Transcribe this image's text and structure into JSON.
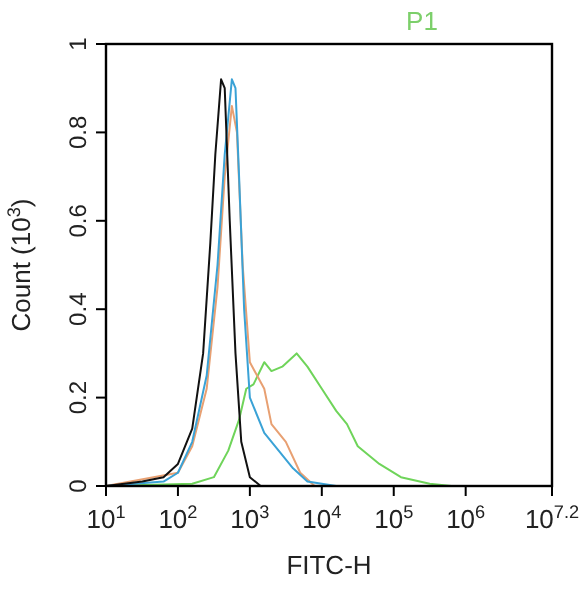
{
  "chart_data": {
    "type": "line",
    "title": "P1",
    "xlabel": "FITC-H",
    "ylabel": "Count (10$^{3}$)",
    "log": "x",
    "xlim": [
      10,
      15848932
    ],
    "ylim": [
      0,
      1
    ],
    "xticks": [
      {
        "value": 10,
        "label": "10$^{1}$"
      },
      {
        "value": 100,
        "label": "10$^{2}$"
      },
      {
        "value": 1000,
        "label": "10$^{3}$"
      },
      {
        "value": 10000,
        "label": "10$^{4}$"
      },
      {
        "value": 100000,
        "label": "10$^{5}$"
      },
      {
        "value": 1000000,
        "label": "10$^{6}$"
      },
      {
        "value": 15848932,
        "label": "10$^{7.2}$"
      }
    ],
    "yticks": [
      0,
      0.2,
      0.4,
      0.6,
      0.8,
      1
    ],
    "grid": false,
    "marker": "none",
    "line_style": "solid",
    "series": [
      {
        "color": "#6fd45a",
        "x": [
          10,
          158,
          316,
          501,
          708,
          891,
          1122,
          1585,
          1995,
          2818,
          4467,
          6310,
          10000,
          15849,
          22387,
          31623,
          63096,
          125893,
          316228,
          630957
        ],
        "values": [
          0,
          0.005,
          0.02,
          0.08,
          0.15,
          0.22,
          0.23,
          0.28,
          0.26,
          0.27,
          0.3,
          0.27,
          0.22,
          0.17,
          0.14,
          0.09,
          0.05,
          0.02,
          0.005,
          0
        ]
      },
      {
        "color": "#e8a072",
        "x": [
          10,
          100,
          158,
          251,
          355,
          447,
          562,
          661,
          794,
          1000,
          1259,
          1585,
          1995,
          3162,
          5012,
          7943
        ],
        "values": [
          0,
          0.03,
          0.09,
          0.22,
          0.45,
          0.7,
          0.86,
          0.8,
          0.5,
          0.28,
          0.25,
          0.22,
          0.14,
          0.1,
          0.03,
          0
        ]
      },
      {
        "color": "#3aa2d6",
        "x": [
          10,
          63,
          100,
          158,
          251,
          355,
          447,
          562,
          631,
          708,
          832,
          1000,
          1585,
          2512,
          3981,
          6310,
          15849
        ],
        "values": [
          0,
          0.01,
          0.03,
          0.1,
          0.25,
          0.5,
          0.75,
          0.92,
          0.9,
          0.7,
          0.4,
          0.2,
          0.12,
          0.08,
          0.04,
          0.01,
          0
        ]
      },
      {
        "color": "#111111",
        "x": [
          10,
          32,
          63,
          100,
          158,
          224,
          282,
          331,
          398,
          447,
          525,
          631,
          759,
          1000,
          1413
        ],
        "values": [
          0,
          0.01,
          0.02,
          0.05,
          0.13,
          0.3,
          0.55,
          0.75,
          0.92,
          0.9,
          0.6,
          0.3,
          0.1,
          0.02,
          0
        ]
      }
    ]
  }
}
